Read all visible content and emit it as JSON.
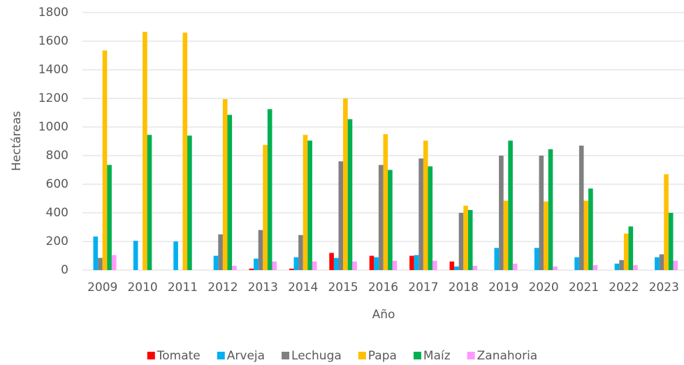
{
  "chart_data": {
    "type": "bar",
    "x_label": "Año",
    "y_label": "Hectáreas",
    "categories": [
      "2009",
      "2010",
      "2011",
      "2012",
      "2013",
      "2014",
      "2015",
      "2016",
      "2017",
      "2018",
      "2019",
      "2020",
      "2021",
      "2022",
      "2023"
    ],
    "series": [
      {
        "name": "Tomate",
        "color": "#ff0000",
        "values": [
          0,
          0,
          0,
          0,
          10,
          10,
          120,
          100,
          100,
          60,
          0,
          0,
          0,
          0,
          0
        ]
      },
      {
        "name": "Arveja",
        "color": "#00b0f0",
        "values": [
          235,
          205,
          200,
          100,
          80,
          90,
          85,
          90,
          105,
          25,
          155,
          155,
          90,
          45,
          90
        ]
      },
      {
        "name": "Lechuga",
        "color": "#808080",
        "values": [
          85,
          0,
          0,
          250,
          280,
          245,
          760,
          735,
          780,
          400,
          800,
          800,
          870,
          70,
          110
        ]
      },
      {
        "name": "Papa",
        "color": "#ffc000",
        "values": [
          1535,
          1665,
          1660,
          1195,
          875,
          945,
          1200,
          950,
          905,
          450,
          485,
          480,
          485,
          255,
          670
        ]
      },
      {
        "name": "Maíz",
        "color": "#00b050",
        "values": [
          735,
          945,
          940,
          1085,
          1125,
          905,
          1055,
          700,
          725,
          420,
          905,
          845,
          570,
          305,
          400
        ]
      },
      {
        "name": "Zanahoria",
        "color": "#ff99ff",
        "values": [
          105,
          0,
          0,
          30,
          60,
          60,
          60,
          65,
          65,
          30,
          45,
          25,
          35,
          35,
          65
        ]
      }
    ],
    "ylim": [
      0,
      1800
    ],
    "yticks": [
      0,
      200,
      400,
      600,
      800,
      1000,
      1200,
      1400,
      1600,
      1800
    ],
    "grid": true,
    "legend": "bottom"
  }
}
